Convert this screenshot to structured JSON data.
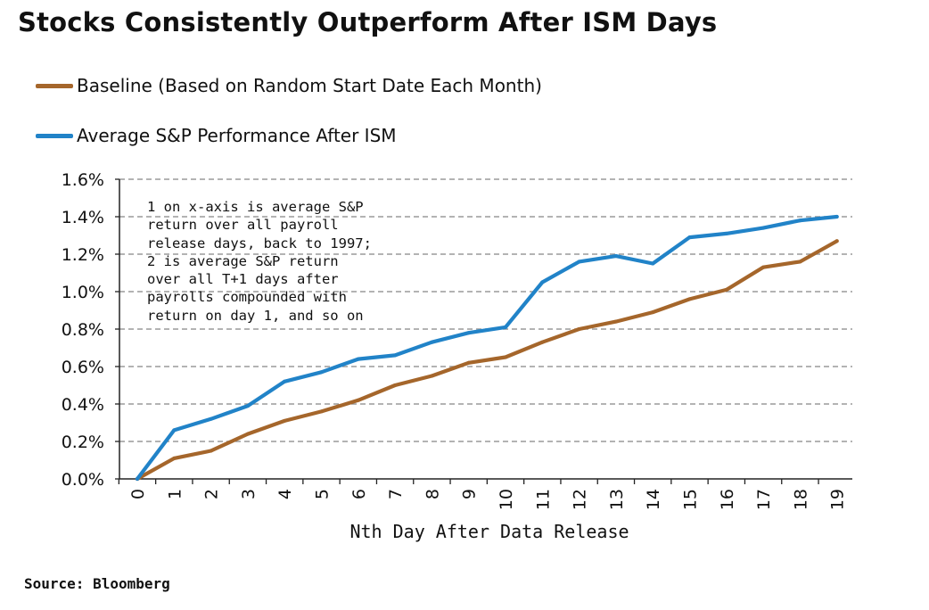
{
  "title": "Stocks Consistently Outperform After ISM Days",
  "source": "Source: Bloomberg",
  "annotation": "1 on x-axis is average S&P return over all payroll release days, back to 1997; 2 is average S&P return over all T+1 days after payrolls compounded with return on day 1, and so on",
  "colors": {
    "baseline": "#A5662B",
    "after_ism": "#2183C8",
    "grid": "#9a9a9a",
    "axis": "#222222"
  },
  "chart_data": {
    "type": "line",
    "title": "Stocks Consistently Outperform After ISM Days",
    "xlabel": "Nth Day After Data Release",
    "ylabel": "",
    "x": [
      0,
      1,
      2,
      3,
      4,
      5,
      6,
      7,
      8,
      9,
      10,
      11,
      12,
      13,
      14,
      15,
      16,
      17,
      18,
      19
    ],
    "x_tick_labels": [
      "0",
      "1",
      "2",
      "3",
      "4",
      "5",
      "6",
      "7",
      "8",
      "9",
      "10",
      "11",
      "12",
      "13",
      "14",
      "15",
      "16",
      "17",
      "18",
      "19"
    ],
    "ylim": [
      0,
      1.6
    ],
    "y_ticks": [
      0,
      0.2,
      0.4,
      0.6,
      0.8,
      1.0,
      1.2,
      1.4,
      1.6
    ],
    "y_tick_labels": [
      "0.0%",
      "0.2%",
      "0.4%",
      "0.6%",
      "0.8%",
      "1.0%",
      "1.2%",
      "1.4%",
      "1.6%"
    ],
    "grid": "horizontal dashed",
    "legend_position": "top-left",
    "series": [
      {
        "name": "Baseline (Based on Random Start Date Each Month)",
        "color": "#A5662B",
        "values": [
          0.0,
          0.11,
          0.15,
          0.24,
          0.31,
          0.36,
          0.42,
          0.5,
          0.55,
          0.62,
          0.65,
          0.73,
          0.8,
          0.84,
          0.89,
          0.96,
          1.01,
          1.13,
          1.16,
          1.27
        ]
      },
      {
        "name": "Average S&P Performance After ISM",
        "color": "#2183C8",
        "values": [
          0.0,
          0.26,
          0.32,
          0.39,
          0.52,
          0.57,
          0.64,
          0.66,
          0.73,
          0.78,
          0.81,
          1.05,
          1.16,
          1.19,
          1.15,
          1.29,
          1.31,
          1.34,
          1.38,
          1.4
        ]
      }
    ]
  }
}
